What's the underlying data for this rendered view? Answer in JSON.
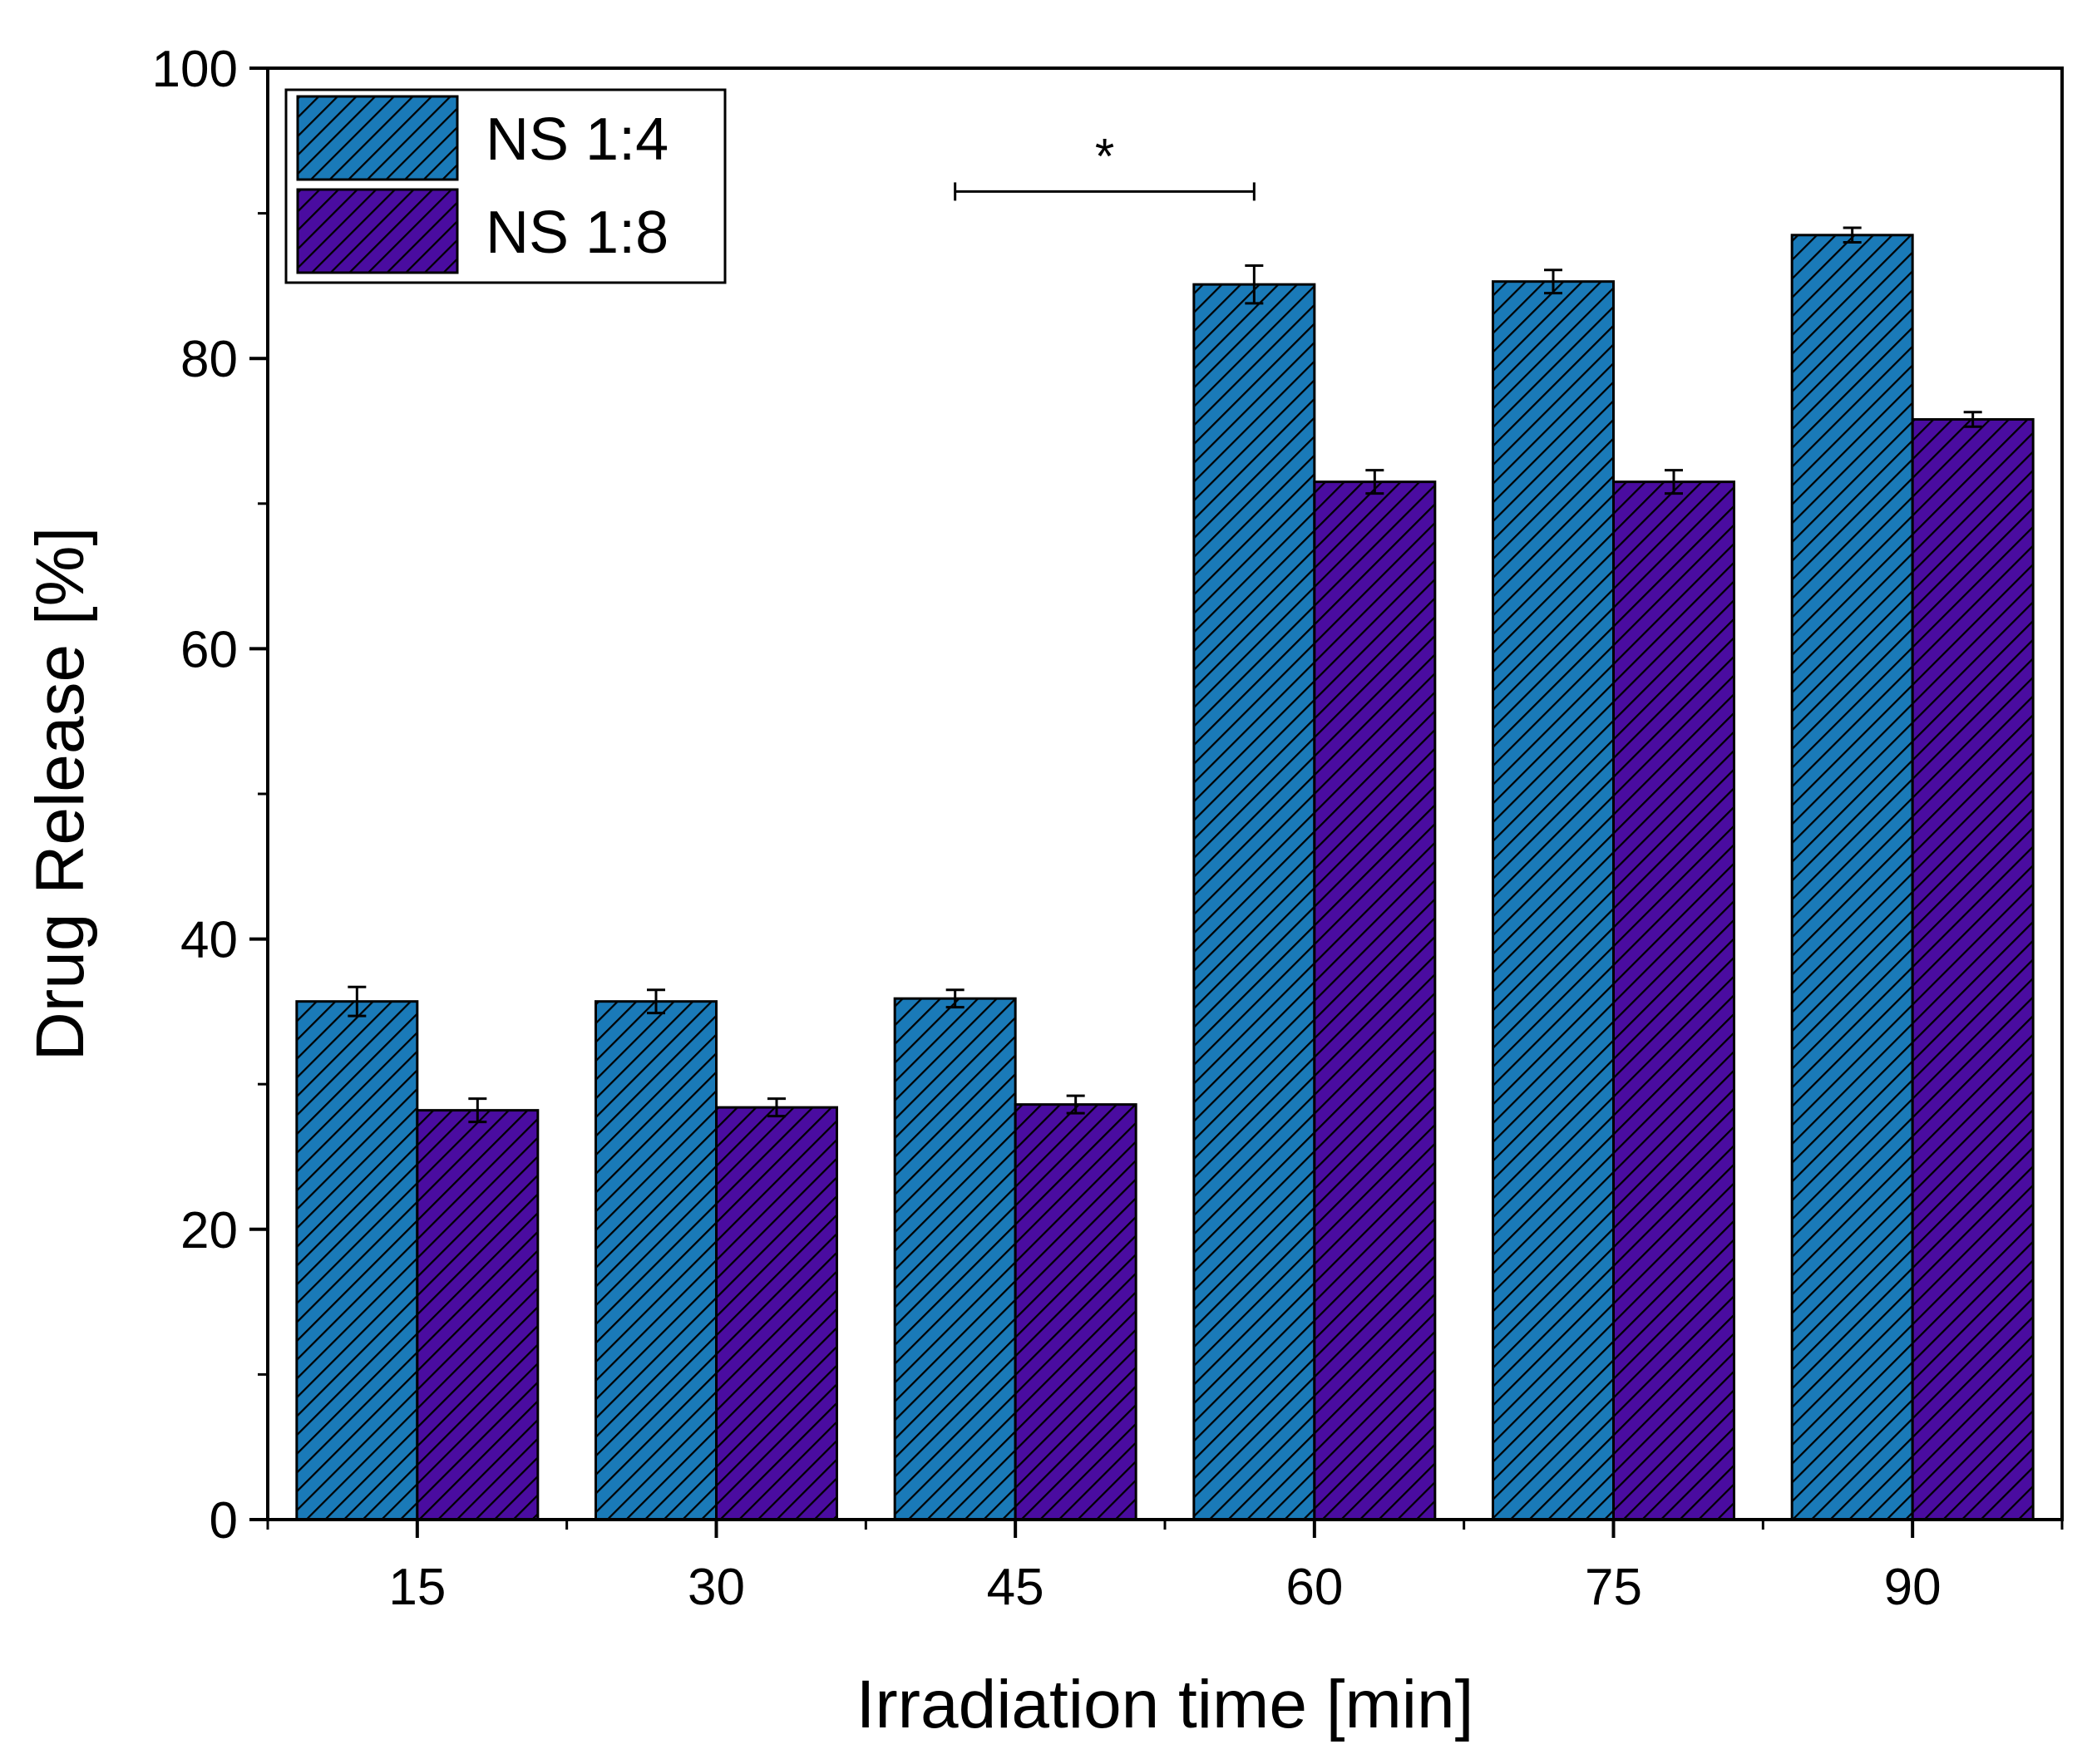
{
  "chart_data": {
    "type": "bar",
    "title": "",
    "xlabel": "Irradiation time [min]",
    "ylabel": "Drug Release [%]",
    "categories": [
      "15",
      "30",
      "45",
      "60",
      "75",
      "90"
    ],
    "ylim": [
      0,
      100
    ],
    "yticks": [
      "0",
      "20",
      "40",
      "60",
      "80",
      "100"
    ],
    "grid": false,
    "legend_position": "top-left",
    "series": [
      {
        "name": "NS 1:4",
        "color": "#1a7ab8",
        "values": [
          35.7,
          35.7,
          35.9,
          85.1,
          85.3,
          88.5
        ],
        "errors": [
          1.0,
          0.8,
          0.6,
          1.3,
          0.8,
          0.5
        ]
      },
      {
        "name": "NS 1:8",
        "color": "#4a0ca0",
        "values": [
          28.2,
          28.4,
          28.6,
          71.5,
          71.5,
          75.8
        ],
        "errors": [
          0.8,
          0.6,
          0.6,
          0.8,
          0.8,
          0.5
        ]
      }
    ],
    "annotations": [
      {
        "text": "*",
        "from_category": "45",
        "to_category": "60",
        "y": 91.5
      }
    ]
  }
}
